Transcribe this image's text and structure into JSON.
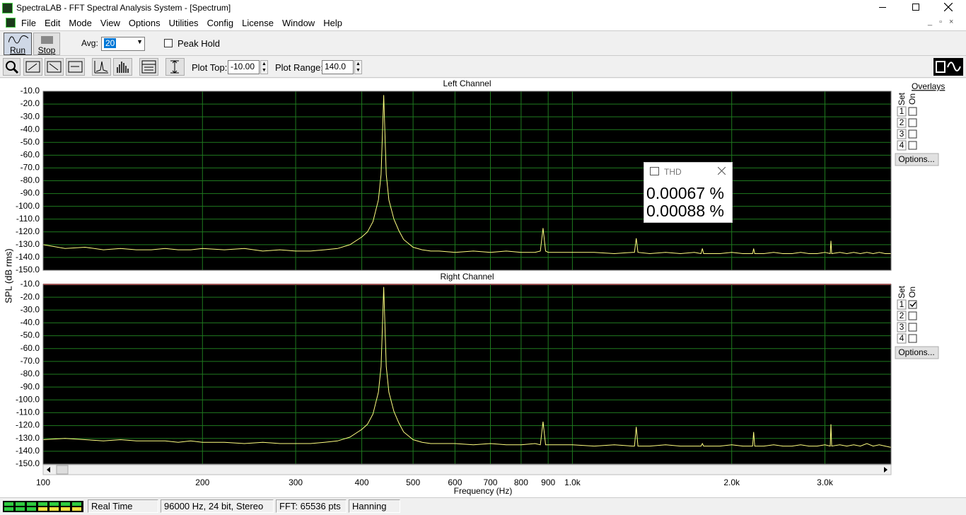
{
  "window": {
    "title": "SpectraLAB - FFT Spectral Analysis System - [Spectrum]"
  },
  "menu": [
    "File",
    "Edit",
    "Mode",
    "View",
    "Options",
    "Utilities",
    "Config",
    "License",
    "Window",
    "Help"
  ],
  "toolbar": {
    "run": "Run",
    "stop": "Stop",
    "avg_label": "Avg:",
    "avg_value": "20",
    "peak_hold": "Peak Hold",
    "plot_top_label": "Plot Top:",
    "plot_top": "-10.00",
    "plot_range_label": "Plot Range:",
    "plot_range": "140.0"
  },
  "overlays": {
    "title": "Overlays",
    "set": "Set",
    "on": "On",
    "numbers": [
      "1",
      "2",
      "3",
      "4"
    ],
    "options": "Options...",
    "checked": [
      [
        false,
        false,
        false,
        false
      ],
      [
        true,
        false,
        false,
        false
      ]
    ]
  },
  "thd": {
    "title": "THD",
    "values": [
      "0.00067 %",
      "0.00088 %"
    ]
  },
  "status": [
    "Real Time",
    "96000 Hz, 24 bit, Stereo",
    "FFT: 65536 pts",
    "Hanning"
  ],
  "chart_data": [
    {
      "type": "line",
      "title": "Left Channel",
      "y_label": "SPL (dB rms)",
      "log_x": true,
      "grid": true,
      "color": "#ffff80",
      "xlim": [
        100,
        4000
      ],
      "ylim": [
        -150,
        -10
      ],
      "xticks": [
        100,
        200,
        300,
        400,
        500,
        600,
        700,
        800,
        900,
        1000,
        2000,
        3000
      ],
      "yticks": [
        {
          "value": -10,
          "label": "-10.0"
        },
        {
          "value": -20,
          "label": "-20.0"
        },
        {
          "value": -30,
          "label": "-30.0"
        },
        {
          "value": -40,
          "label": "-40.0"
        },
        {
          "value": -50,
          "label": "-50.0"
        },
        {
          "value": -60,
          "label": "-60.0"
        },
        {
          "value": -70,
          "label": "-70.0"
        },
        {
          "value": -80,
          "label": "-80.0"
        },
        {
          "value": -90,
          "label": "-90.0"
        },
        {
          "value": -100,
          "label": "-100.0"
        },
        {
          "value": -110,
          "label": "-110.0"
        },
        {
          "value": -120,
          "label": "-120.0"
        },
        {
          "value": -130,
          "label": "-130.0"
        },
        {
          "value": -140,
          "label": "-140.0"
        },
        {
          "value": -150,
          "label": "-150.0"
        }
      ],
      "x": [
        100,
        110,
        120,
        130,
        140,
        150,
        160,
        170,
        180,
        190,
        200,
        220,
        240,
        260,
        280,
        300,
        320,
        340,
        360,
        380,
        400,
        410,
        420,
        430,
        435,
        440,
        445,
        450,
        460,
        470,
        480,
        500,
        520,
        540,
        560,
        600,
        650,
        700,
        750,
        800,
        850,
        870,
        880,
        890,
        900,
        950,
        1000,
        1100,
        1200,
        1300,
        1310,
        1320,
        1330,
        1400,
        1500,
        1600,
        1700,
        1750,
        1760,
        1770,
        1800,
        1900,
        2000,
        2100,
        2190,
        2200,
        2210,
        2300,
        2400,
        2500,
        2600,
        2700,
        2800,
        2900,
        3000,
        3070,
        3080,
        3090,
        3200,
        3300,
        3400,
        3500,
        3600,
        3700,
        3800,
        3900,
        4000
      ],
      "values": [
        -130,
        -133,
        -132,
        -134,
        -133,
        -134,
        -134,
        -133,
        -134,
        -134,
        -133,
        -134,
        -133,
        -135,
        -134,
        -135,
        -135,
        -134,
        -133,
        -130,
        -124,
        -120,
        -112,
        -95,
        -75,
        -13,
        -75,
        -95,
        -110,
        -119,
        -126,
        -132,
        -134,
        -135,
        -135,
        -136,
        -135,
        -136,
        -135,
        -136,
        -136,
        -135,
        -117,
        -135,
        -136,
        -136,
        -136,
        -136,
        -137,
        -136,
        -136,
        -125,
        -136,
        -137,
        -136,
        -137,
        -136,
        -137,
        -133,
        -137,
        -137,
        -137,
        -136,
        -137,
        -137,
        -133,
        -137,
        -137,
        -136,
        -137,
        -137,
        -136,
        -137,
        -137,
        -136,
        -137,
        -127,
        -137,
        -136,
        -137,
        -136,
        -137,
        -136,
        -137,
        -136,
        -137,
        -137
      ]
    },
    {
      "type": "line",
      "title": "Right Channel",
      "x_label": "Frequency (Hz)",
      "log_x": true,
      "grid": true,
      "color": "#ffff80",
      "xlim": [
        100,
        4000
      ],
      "ylim": [
        -150,
        -10
      ],
      "xticks": [
        100,
        200,
        300,
        400,
        500,
        600,
        700,
        800,
        900,
        {
          "value": 1000,
          "label": "1.0k"
        },
        {
          "value": 2000,
          "label": "2.0k"
        },
        {
          "value": 3000,
          "label": "3.0k"
        }
      ],
      "yticks": [
        {
          "value": -10,
          "label": "-10.0"
        },
        {
          "value": -20,
          "label": "-20.0"
        },
        {
          "value": -30,
          "label": "-30.0"
        },
        {
          "value": -40,
          "label": "-40.0"
        },
        {
          "value": -50,
          "label": "-50.0"
        },
        {
          "value": -60,
          "label": "-60.0"
        },
        {
          "value": -70,
          "label": "-70.0"
        },
        {
          "value": -80,
          "label": "-80.0"
        },
        {
          "value": -90,
          "label": "-90.0"
        },
        {
          "value": -100,
          "label": "-100.0"
        },
        {
          "value": -110,
          "label": "-110.0"
        },
        {
          "value": -120,
          "label": "-120.0"
        },
        {
          "value": -130,
          "label": "-130.0"
        },
        {
          "value": -140,
          "label": "-140.0"
        },
        {
          "value": -150,
          "label": "-150.0"
        }
      ],
      "x": [
        100,
        110,
        120,
        130,
        140,
        150,
        160,
        170,
        180,
        190,
        200,
        220,
        240,
        260,
        280,
        300,
        320,
        340,
        360,
        380,
        400,
        410,
        420,
        430,
        435,
        440,
        445,
        450,
        460,
        470,
        480,
        500,
        520,
        540,
        560,
        600,
        650,
        700,
        750,
        800,
        850,
        870,
        880,
        890,
        900,
        950,
        1000,
        1100,
        1200,
        1300,
        1310,
        1320,
        1330,
        1400,
        1500,
        1600,
        1700,
        1750,
        1760,
        1770,
        1800,
        1900,
        2000,
        2100,
        2190,
        2200,
        2210,
        2300,
        2400,
        2500,
        2600,
        2700,
        2800,
        2900,
        3000,
        3070,
        3080,
        3090,
        3200,
        3300,
        3400,
        3500,
        3600,
        3700,
        3800,
        3900,
        4000
      ],
      "values": [
        -131,
        -130,
        -131,
        -132,
        -131,
        -132,
        -132,
        -132,
        -133,
        -132,
        -133,
        -133,
        -134,
        -133,
        -134,
        -134,
        -134,
        -133,
        -132,
        -129,
        -123,
        -119,
        -111,
        -94,
        -74,
        -12,
        -74,
        -94,
        -109,
        -118,
        -125,
        -131,
        -133,
        -134,
        -134,
        -134,
        -135,
        -134,
        -135,
        -135,
        -134,
        -135,
        -117,
        -135,
        -135,
        -135,
        -135,
        -136,
        -135,
        -136,
        -136,
        -121,
        -136,
        -136,
        -135,
        -136,
        -136,
        -136,
        -134,
        -136,
        -136,
        -136,
        -135,
        -136,
        -136,
        -125,
        -136,
        -136,
        -135,
        -136,
        -136,
        -135,
        -136,
        -136,
        -135,
        -136,
        -119,
        -136,
        -135,
        -136,
        -135,
        -136,
        -134,
        -136,
        -135,
        -136,
        -137
      ]
    }
  ]
}
